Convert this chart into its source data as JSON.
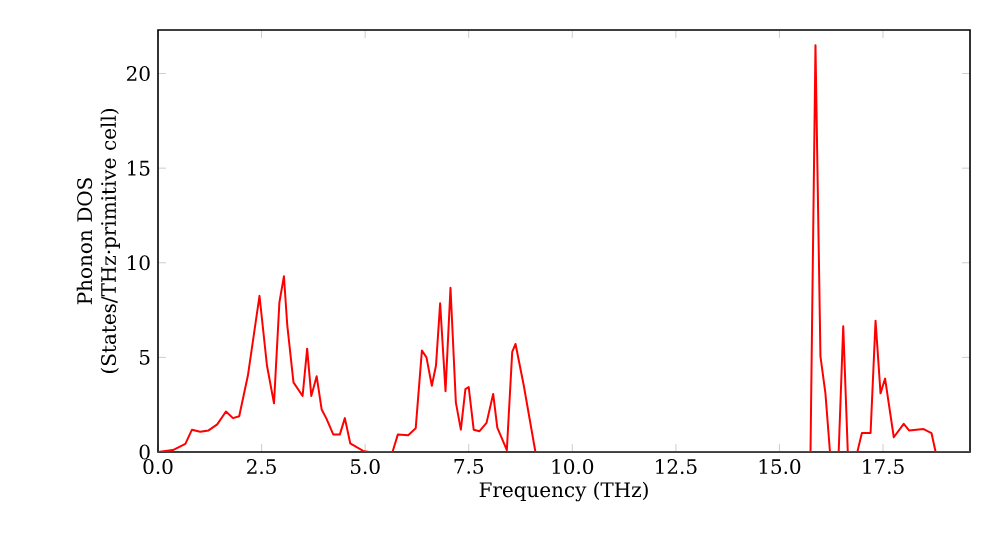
{
  "chart_data": {
    "type": "line",
    "xlabel": "Frequency (THz)",
    "ylabel": "Phonon DOS (States/THz·primitive cell)",
    "xlim": [
      0,
      19.6
    ],
    "ylim": [
      0,
      22.3
    ],
    "xticks": [
      {
        "value": 0,
        "label": "0.0"
      },
      {
        "value": 2.5,
        "label": "2.5"
      },
      {
        "value": 5,
        "label": "5.0"
      },
      {
        "value": 7.5,
        "label": "7.5"
      },
      {
        "value": 10,
        "label": "10.0"
      },
      {
        "value": 12.5,
        "label": "12.5"
      },
      {
        "value": 15,
        "label": "15.0"
      },
      {
        "value": 17.5,
        "label": "17.5"
      }
    ],
    "yticks": [
      0,
      5,
      10,
      15,
      20
    ],
    "series": [
      {
        "color": "#ff0000",
        "x": [
          0,
          0.36,
          0.66,
          0.82,
          1.02,
          1.22,
          1.43,
          1.64,
          1.81,
          1.96,
          2.17,
          2.45,
          2.63,
          2.8,
          2.93,
          3.04,
          3.12,
          3.27,
          3.49,
          3.6,
          3.7,
          3.83,
          3.95,
          4.06,
          4.23,
          4.39,
          4.51,
          4.64,
          4.97,
          5.1,
          5.66,
          5.79,
          6.04,
          6.22,
          6.37,
          6.48,
          6.61,
          6.71,
          6.81,
          6.94,
          7.06,
          7.19,
          7.31,
          7.42,
          7.5,
          7.62,
          7.76,
          7.93,
          8.09,
          8.19,
          8.42,
          8.55,
          8.63,
          8.83,
          9.11,
          15.75,
          15.87,
          15.99,
          16.11,
          16.22,
          16.43,
          16.54,
          16.65,
          16.88,
          16.99,
          17.2,
          17.32,
          17.44,
          17.55,
          17.76,
          18.0,
          18.13,
          18.48,
          18.67,
          18.77,
          19.6
        ],
        "values": [
          0,
          0.1,
          0.43,
          1.18,
          1.07,
          1.14,
          1.46,
          2.14,
          1.79,
          1.89,
          4.04,
          8.25,
          4.57,
          2.57,
          7.9,
          9.29,
          6.7,
          3.68,
          2.96,
          5.46,
          2.96,
          4.0,
          2.25,
          1.79,
          0.93,
          0.93,
          1.79,
          0.46,
          0.04,
          0,
          0,
          0.93,
          0.89,
          1.25,
          5.36,
          5.0,
          3.5,
          4.57,
          7.86,
          3.21,
          8.68,
          2.61,
          1.18,
          3.32,
          3.43,
          1.18,
          1.1,
          1.54,
          3.07,
          1.29,
          0.1,
          5.29,
          5.71,
          3.5,
          0,
          0,
          21.5,
          5.05,
          3.1,
          0,
          0,
          6.65,
          0,
          0,
          1.0,
          1.0,
          6.94,
          3.1,
          3.88,
          0.78,
          1.49,
          1.14,
          1.21,
          1.0,
          0,
          0
        ]
      }
    ]
  }
}
